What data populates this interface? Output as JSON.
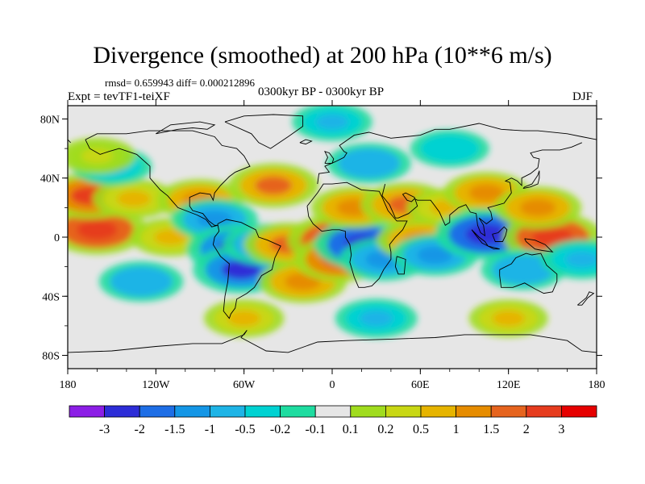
{
  "title": "Divergence (smoothed) at 200 hPa (10**6 m/s)",
  "stats": "rmsd= 0.659943 diff= 0.000212896",
  "experiment": "Expt = tevTF1-teiXF",
  "period": "0300kyr BP - 0300kyr BP",
  "season": "DJF",
  "axes": {
    "lat_labels": [
      {
        "text": "80N",
        "lat": 80
      },
      {
        "text": "40N",
        "lat": 40
      },
      {
        "text": "0",
        "lat": 0
      },
      {
        "text": "40S",
        "lat": -40
      },
      {
        "text": "80S",
        "lat": -80
      }
    ],
    "lon_labels": [
      {
        "text": "180",
        "lon": -180
      },
      {
        "text": "120W",
        "lon": -120
      },
      {
        "text": "60W",
        "lon": -60
      },
      {
        "text": "0",
        "lon": 0
      },
      {
        "text": "60E",
        "lon": 60
      },
      {
        "text": "120E",
        "lon": 120
      },
      {
        "text": "180",
        "lon": 180
      }
    ]
  },
  "colorbar": {
    "colors": [
      "#8c1ee6",
      "#2d2dd7",
      "#1e6ee6",
      "#1496e6",
      "#1eb4e6",
      "#00d2d2",
      "#1edca0",
      "#e6e6e6",
      "#a0dc1e",
      "#c8d714",
      "#e6b400",
      "#e68c00",
      "#e6641e",
      "#e63c1e",
      "#e60000"
    ],
    "labels": [
      "-3",
      "-2",
      "-1.5",
      "-1",
      "-0.5",
      "-0.2",
      "-0.1",
      "0.1",
      "0.2",
      "0.5",
      "1",
      "1.5",
      "2",
      "3"
    ]
  },
  "field": {
    "background_color": "#e6e6e6",
    "blobs": [
      {
        "region": "pacific itcz west",
        "lon": -160,
        "lat": 5,
        "value": 2.5
      },
      {
        "region": "east pacific",
        "lon": -110,
        "lat": 0,
        "value": 0.6
      },
      {
        "region": "north pacific band",
        "lon": -165,
        "lat": 28,
        "value": 2.0
      },
      {
        "region": "north pacific band east",
        "lon": -135,
        "lat": 26,
        "value": 0.8
      },
      {
        "region": "north pacific subpolar",
        "lon": -150,
        "lat": 48,
        "value": -0.6
      },
      {
        "region": "aleutian",
        "lon": -160,
        "lat": 55,
        "value": 0.3
      },
      {
        "region": "gulf of mexico",
        "lon": -90,
        "lat": 25,
        "value": 1.2
      },
      {
        "region": "caribbean",
        "lon": -80,
        "lat": 12,
        "value": -1.2
      },
      {
        "region": "amazon",
        "lon": -65,
        "lat": -8,
        "value": -2.5
      },
      {
        "region": "bolivia",
        "lon": -62,
        "lat": -22,
        "value": -2.2
      },
      {
        "region": "brazil east",
        "lon": -45,
        "lat": -5,
        "value": -1.2
      },
      {
        "region": "north atlantic",
        "lon": -40,
        "lat": 35,
        "value": 1.6
      },
      {
        "region": "atlantic equatorial",
        "lon": -30,
        "lat": -5,
        "value": 1.5
      },
      {
        "region": "south atlantic",
        "lon": -20,
        "lat": -30,
        "value": 1.4
      },
      {
        "region": "gulf of guinea",
        "lon": 5,
        "lat": -2,
        "value": 3.2
      },
      {
        "region": "gulf of guinea south",
        "lon": 5,
        "lat": -15,
        "value": 1.8
      },
      {
        "region": "congo",
        "lon": 22,
        "lat": -5,
        "value": -2.6
      },
      {
        "region": "east africa",
        "lon": 35,
        "lat": -15,
        "value": -1.4
      },
      {
        "region": "sahara",
        "lon": 15,
        "lat": 20,
        "value": 1.2
      },
      {
        "region": "arabia",
        "lon": 50,
        "lat": 22,
        "value": 1.6
      },
      {
        "region": "europe",
        "lon": 25,
        "lat": 50,
        "value": -1.0
      },
      {
        "region": "siberia",
        "lon": 80,
        "lat": 60,
        "value": -0.5
      },
      {
        "region": "west indian ocean",
        "lon": 60,
        "lat": -2,
        "value": 1.3
      },
      {
        "region": "indian ocean",
        "lon": 70,
        "lat": -12,
        "value": -1.2
      },
      {
        "region": "india",
        "lon": 78,
        "lat": 20,
        "value": 0.6
      },
      {
        "region": "china",
        "lon": 105,
        "lat": 30,
        "value": 1.2
      },
      {
        "region": "maritime continent",
        "lon": 105,
        "lat": 2,
        "value": -2.8
      },
      {
        "region": "western pacific",
        "lon": 150,
        "lat": 0,
        "value": 2.5
      },
      {
        "region": "northwest pacific",
        "lon": 140,
        "lat": 20,
        "value": 1.3
      },
      {
        "region": "australia",
        "lon": 130,
        "lat": -22,
        "value": -1.0
      },
      {
        "region": "south pacific",
        "lon": -130,
        "lat": -30,
        "value": -1.0
      },
      {
        "region": "south pacific convergence",
        "lon": 170,
        "lat": -15,
        "value": -0.8
      },
      {
        "region": "southern ocean a",
        "lon": -60,
        "lat": -55,
        "value": 0.6
      },
      {
        "region": "southern ocean b",
        "lon": 30,
        "lat": -55,
        "value": -0.8
      },
      {
        "region": "southern ocean c",
        "lon": 120,
        "lat": -55,
        "value": 0.5
      },
      {
        "region": "arctic",
        "lon": 0,
        "lat": 78,
        "value": -0.6
      }
    ]
  }
}
